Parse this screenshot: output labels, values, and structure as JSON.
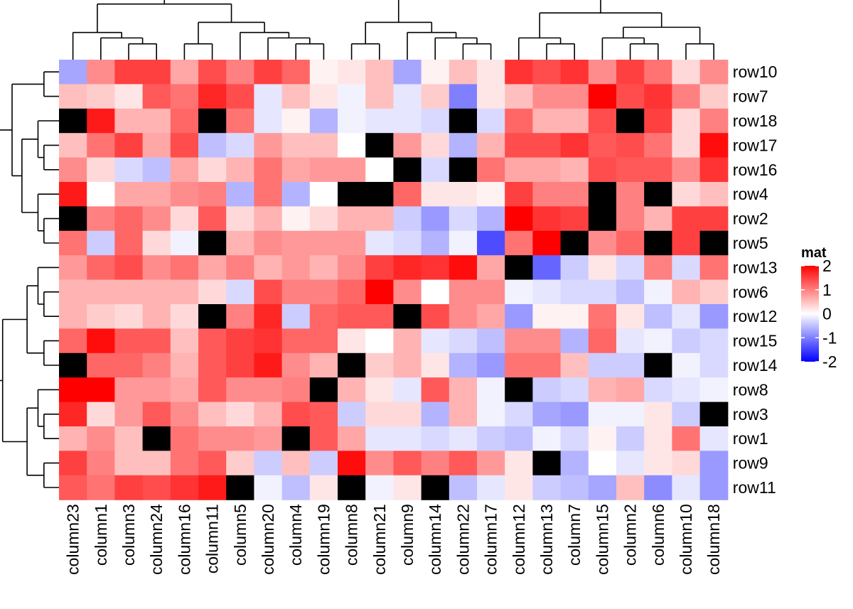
{
  "chart_data": {
    "type": "heatmap",
    "title": "",
    "legend": {
      "title": "mat",
      "ticks": [
        "2",
        "1",
        "0",
        "-1",
        "-2"
      ],
      "range": [
        -2,
        2
      ],
      "colors": {
        "low": "#0000ff",
        "mid": "#ffffff",
        "high": "#ff0000",
        "na": "#000000"
      }
    },
    "columns": [
      "column23",
      "column1",
      "column3",
      "column24",
      "column16",
      "column11",
      "column5",
      "column20",
      "column4",
      "column19",
      "column8",
      "column21",
      "column9",
      "column14",
      "column22",
      "column17",
      "column12",
      "column13",
      "column7",
      "column15",
      "column2",
      "column6",
      "column10",
      "column18"
    ],
    "rows": [
      "row10",
      "row7",
      "row18",
      "row17",
      "row16",
      "row4",
      "row2",
      "row5",
      "row13",
      "row6",
      "row12",
      "row15",
      "row14",
      "row8",
      "row3",
      "row1",
      "row9",
      "row11"
    ],
    "values": [
      [
        -0.7,
        0.9,
        1.5,
        1.5,
        0.7,
        1.4,
        1.0,
        1.5,
        1.2,
        0.1,
        0.2,
        0.5,
        -0.7,
        0.1,
        0.5,
        0.2,
        1.6,
        1.4,
        1.6,
        0.9,
        1.5,
        1.1,
        0.3,
        0.9
      ],
      [
        0.5,
        0.4,
        0.2,
        1.3,
        1.1,
        1.7,
        1.4,
        -0.2,
        0.5,
        0.2,
        -0.1,
        0.5,
        -0.2,
        0.4,
        -1.0,
        0.2,
        0.5,
        0.9,
        0.9,
        2.0,
        1.4,
        1.6,
        1.0,
        0.4
      ],
      [
        null,
        1.8,
        0.6,
        0.6,
        1.2,
        null,
        1.1,
        -0.2,
        0.1,
        -0.6,
        -0.1,
        -0.2,
        -0.2,
        -0.3,
        null,
        -0.3,
        1.2,
        0.6,
        0.6,
        1.4,
        null,
        1.5,
        0.3,
        1.0
      ],
      [
        0.5,
        1.1,
        1.5,
        0.7,
        1.4,
        -0.5,
        -0.3,
        0.8,
        0.5,
        0.5,
        0.0,
        null,
        0.8,
        0.3,
        -0.6,
        0.6,
        1.4,
        1.4,
        1.6,
        1.3,
        1.4,
        1.1,
        0.3,
        1.9
      ],
      [
        0.9,
        0.3,
        -0.3,
        -0.5,
        0.7,
        0.3,
        0.6,
        1.1,
        0.7,
        0.8,
        0.8,
        0.0,
        null,
        -0.3,
        null,
        1.1,
        0.7,
        0.7,
        0.6,
        1.4,
        1.3,
        1.3,
        0.9,
        1.6
      ],
      [
        1.8,
        0.0,
        0.7,
        0.7,
        0.9,
        1.0,
        -0.6,
        1.1,
        -0.6,
        0.0,
        null,
        null,
        1.2,
        0.2,
        0.2,
        0.1,
        1.5,
        1.0,
        1.0,
        null,
        1.0,
        null,
        0.3,
        0.5
      ],
      [
        null,
        1.0,
        1.2,
        0.9,
        0.3,
        1.3,
        0.3,
        0.6,
        0.1,
        0.3,
        0.6,
        0.6,
        -0.4,
        -0.8,
        -0.3,
        -0.6,
        2.0,
        1.6,
        1.5,
        null,
        1.0,
        0.6,
        1.5,
        1.5
      ],
      [
        1.1,
        -0.4,
        1.2,
        0.3,
        -0.1,
        null,
        0.6,
        0.9,
        0.8,
        0.8,
        0.8,
        -0.2,
        -0.3,
        -0.6,
        -0.1,
        -1.4,
        1.1,
        2.0,
        null,
        0.9,
        1.2,
        null,
        1.5,
        null
      ],
      [
        0.8,
        1.2,
        1.4,
        0.9,
        1.1,
        0.7,
        1.0,
        0.6,
        0.8,
        0.6,
        0.9,
        1.5,
        1.7,
        1.6,
        1.9,
        0.7,
        null,
        -1.2,
        -0.4,
        0.2,
        -0.3,
        1.0,
        -0.3,
        1.1
      ],
      [
        0.6,
        0.6,
        0.6,
        0.6,
        0.6,
        0.3,
        -0.3,
        1.4,
        1.0,
        1.0,
        1.2,
        2.0,
        0.9,
        0.0,
        0.9,
        0.9,
        -0.1,
        -0.2,
        -0.3,
        -0.3,
        -0.5,
        -0.1,
        0.6,
        0.4
      ],
      [
        0.6,
        0.4,
        0.3,
        0.6,
        0.3,
        null,
        1.0,
        1.7,
        -0.4,
        1.2,
        1.3,
        1.3,
        null,
        1.4,
        0.9,
        0.7,
        -0.8,
        0.1,
        0.1,
        1.1,
        0.2,
        -0.5,
        -0.2,
        -0.8
      ],
      [
        1.2,
        1.9,
        1.3,
        1.3,
        0.5,
        1.3,
        1.5,
        1.6,
        1.2,
        1.2,
        0.2,
        0.0,
        0.6,
        -0.2,
        -0.3,
        -0.5,
        0.9,
        0.9,
        -0.6,
        1.2,
        -0.2,
        -0.1,
        -0.4,
        -0.3
      ],
      [
        null,
        1.2,
        1.2,
        1.0,
        0.6,
        1.3,
        1.5,
        1.8,
        0.9,
        0.6,
        null,
        0.4,
        0.6,
        0.2,
        -0.6,
        -0.8,
        1.1,
        1.1,
        0.5,
        -0.4,
        -0.4,
        null,
        -0.1,
        -0.3
      ],
      [
        2.0,
        2.0,
        0.8,
        0.8,
        0.7,
        1.3,
        0.9,
        0.9,
        1.0,
        null,
        0.6,
        0.2,
        -0.2,
        1.3,
        0.6,
        -0.1,
        null,
        -0.4,
        -0.3,
        0.6,
        0.7,
        -0.3,
        -0.2,
        -0.1
      ],
      [
        1.7,
        0.3,
        0.8,
        1.3,
        0.9,
        0.5,
        0.3,
        0.6,
        1.4,
        1.3,
        -0.4,
        0.3,
        0.3,
        -0.6,
        0.6,
        -0.1,
        -0.3,
        -0.7,
        -0.8,
        -0.1,
        -0.1,
        0.2,
        -0.4,
        null
      ],
      [
        0.6,
        0.9,
        0.5,
        null,
        1.1,
        0.9,
        0.9,
        0.8,
        null,
        1.3,
        0.7,
        -0.2,
        -0.2,
        -0.3,
        -0.2,
        -0.4,
        -0.5,
        -0.1,
        -0.3,
        0.1,
        -0.4,
        0.2,
        1.1,
        -0.2
      ],
      [
        1.5,
        1.0,
        0.5,
        0.5,
        1.1,
        1.3,
        0.4,
        -0.4,
        0.5,
        -0.4,
        1.9,
        0.9,
        1.3,
        1.0,
        1.3,
        0.8,
        0.2,
        null,
        -0.6,
        0.0,
        -0.2,
        0.2,
        0.3,
        -0.8
      ],
      [
        1.3,
        1.1,
        1.5,
        1.4,
        1.6,
        1.8,
        null,
        -0.1,
        -0.5,
        0.2,
        null,
        -0.1,
        0.2,
        null,
        -0.5,
        -0.2,
        0.2,
        -0.4,
        -0.5,
        -0.7,
        0.5,
        -0.9,
        -0.2,
        -0.8
      ]
    ]
  }
}
